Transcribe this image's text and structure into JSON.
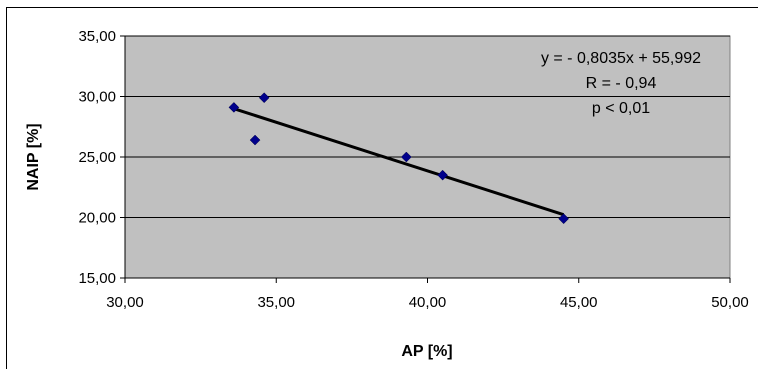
{
  "chart_data": {
    "type": "scatter",
    "xlabel": "AP [%]",
    "ylabel": "NAIP [%]",
    "xlim": [
      30,
      50
    ],
    "ylim": [
      15,
      35
    ],
    "x_ticks": [
      "30,00",
      "35,00",
      "40,00",
      "45,00",
      "50,00"
    ],
    "y_ticks": [
      "15,00",
      "20,00",
      "25,00",
      "30,00",
      "35,00"
    ],
    "x_tick_values": [
      30,
      35,
      40,
      45,
      50
    ],
    "y_tick_values": [
      15,
      20,
      25,
      30,
      35
    ],
    "grid": "horizontal",
    "plot_background": "#c0c0c0",
    "marker_color": "#00008b",
    "trendline_color": "#000000",
    "points": [
      {
        "x": 33.6,
        "y": 29.1
      },
      {
        "x": 34.6,
        "y": 29.9
      },
      {
        "x": 34.3,
        "y": 26.4
      },
      {
        "x": 39.3,
        "y": 25.0
      },
      {
        "x": 40.5,
        "y": 23.5
      },
      {
        "x": 44.5,
        "y": 19.9
      }
    ],
    "trendline": {
      "slope": -0.8035,
      "intercept": 55.992,
      "x_range": [
        33.6,
        44.5
      ]
    },
    "annotations": [
      "y = - 0,8035x + 55,992",
      "R = - 0,94",
      "p < 0,01"
    ]
  }
}
